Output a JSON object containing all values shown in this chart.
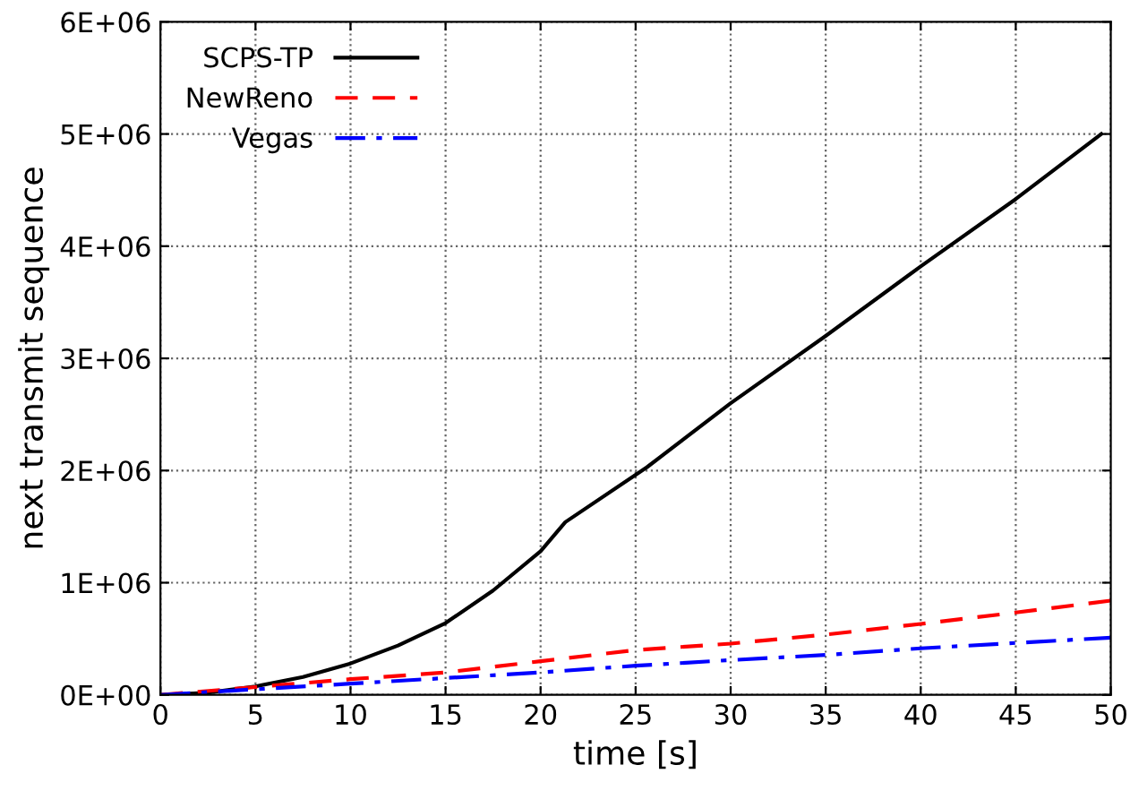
{
  "chart_data": {
    "type": "line",
    "xlabel": "time [s]",
    "ylabel": "next transmit sequence",
    "xlim": [
      0,
      50
    ],
    "xticks": [
      0,
      5,
      10,
      15,
      20,
      25,
      30,
      35,
      40,
      45,
      50
    ],
    "ylim": [
      0,
      6000000
    ],
    "yticks": [
      {
        "value": 0,
        "label": "0E+00"
      },
      {
        "value": 1000000,
        "label": "1E+06"
      },
      {
        "value": 2000000,
        "label": "2E+06"
      },
      {
        "value": 3000000,
        "label": "3E+06"
      },
      {
        "value": 4000000,
        "label": "4E+06"
      },
      {
        "value": 5000000,
        "label": "5E+06"
      },
      {
        "value": 6000000,
        "label": "6E+06"
      }
    ],
    "grid": true,
    "legend": "top left",
    "series": [
      {
        "name": "SCPS-TP",
        "color": "#000000",
        "line_style": "solid",
        "x": [
          0,
          2.5,
          5,
          7.5,
          10,
          12.5,
          15,
          17.5,
          20,
          21.3,
          25.6,
          30,
          35,
          40,
          45,
          49.5
        ],
        "values": [
          0,
          20000,
          76000,
          160000,
          280000,
          440000,
          640000,
          930000,
          1280000,
          1540000,
          2030000,
          2600000,
          3200000,
          3820000,
          4420000,
          5000000
        ]
      },
      {
        "name": "NewReno",
        "color": "#ff0000",
        "line_style": "dashed",
        "x": [
          0,
          5,
          10,
          15,
          20,
          25,
          30,
          35,
          40,
          45,
          50
        ],
        "values": [
          0,
          70000,
          140000,
          200000,
          300000,
          400000,
          457000,
          537000,
          633000,
          734000,
          840000
        ]
      },
      {
        "name": "Vegas",
        "color": "#0000ff",
        "line_style": "dashdot",
        "x": [
          0,
          5,
          10,
          15,
          20,
          25,
          30,
          35,
          40,
          45,
          50
        ],
        "values": [
          0,
          50000,
          100000,
          150000,
          200000,
          260000,
          310000,
          356000,
          415000,
          463000,
          510000
        ]
      }
    ]
  }
}
